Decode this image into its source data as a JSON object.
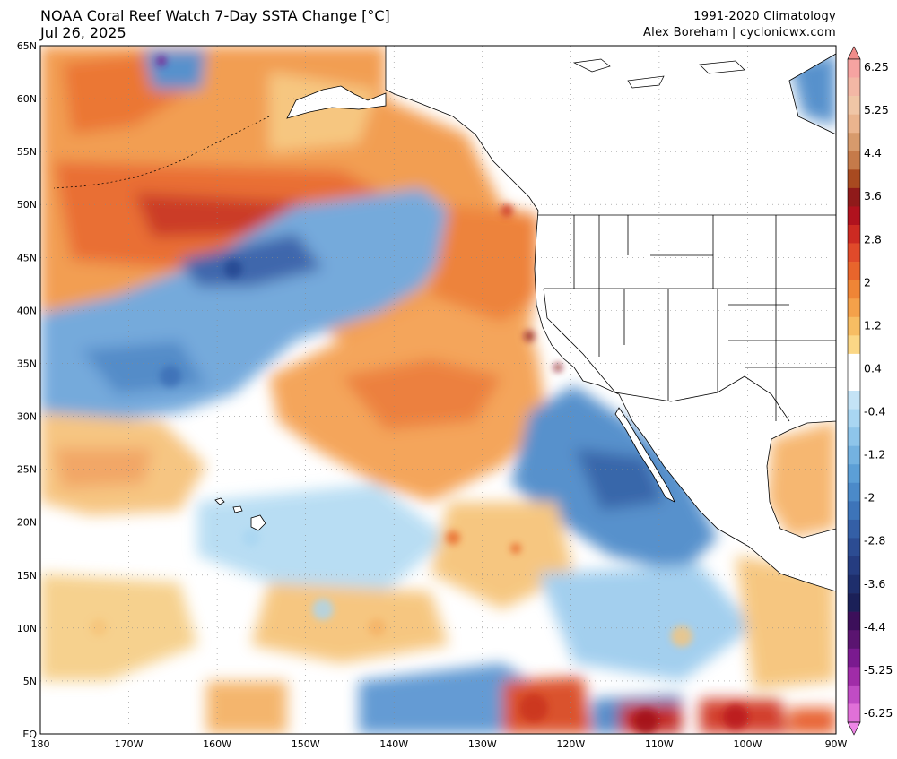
{
  "header": {
    "title": "NOAA Coral Reef Watch 7-Day SSTA Change [°C]",
    "date": "Jul 26, 2025",
    "climatology": "1991-2020 Climatology",
    "credit": "Alex Boreham | cyclonicwx.com"
  },
  "map": {
    "lon_range": [
      -180,
      -90
    ],
    "lat_range": [
      0,
      65
    ],
    "lat_labels": [
      "65N",
      "60N",
      "55N",
      "50N",
      "45N",
      "40N",
      "35N",
      "30N",
      "25N",
      "20N",
      "15N",
      "10N",
      "5N",
      "EQ"
    ],
    "lon_labels": [
      "180",
      "170W",
      "160W",
      "150W",
      "140W",
      "130W",
      "120W",
      "110W",
      "100W",
      "90W"
    ]
  },
  "colorbar": {
    "labels": [
      "6.25",
      "5.25",
      "4.4",
      "3.6",
      "2.8",
      "2",
      "1.2",
      "0.4",
      "-0.4",
      "-1.2",
      "-2",
      "-2.8",
      "-3.6",
      "-4.4",
      "-5.25",
      "-6.25"
    ],
    "colors": {
      "warm_top": "#f08c6c",
      "warm_mid": "#e65a28",
      "warm_dark": "#b8151c",
      "warm_light": "#fbd786",
      "neutral": "#ffffff",
      "cool_light": "#a9d6f2",
      "cool_mid": "#4f93d1",
      "cool_dark": "#1e3f8f",
      "purple": "#7a1a8f",
      "magenta": "#e070d8"
    }
  }
}
